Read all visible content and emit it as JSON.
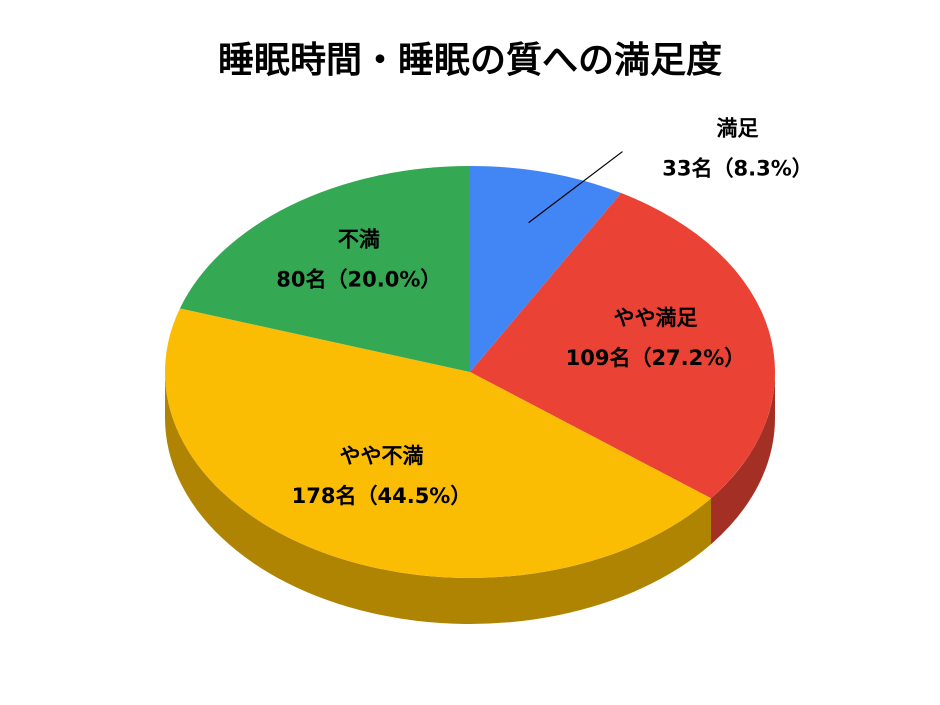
{
  "chart_data": {
    "type": "pie",
    "title": "睡眠時間・睡眠の質への満足度",
    "categories": [
      "満足",
      "やや満足",
      "やや不満",
      "不満"
    ],
    "values": [
      33,
      109,
      178,
      80
    ],
    "value_labels": [
      "33名（8.3%）",
      "109名（27.2%）",
      "178名（44.5%）",
      "80名（20.0%）"
    ],
    "colors": [
      "#4285f4",
      "#ea4335",
      "#fbbc04",
      "#34a853"
    ]
  }
}
